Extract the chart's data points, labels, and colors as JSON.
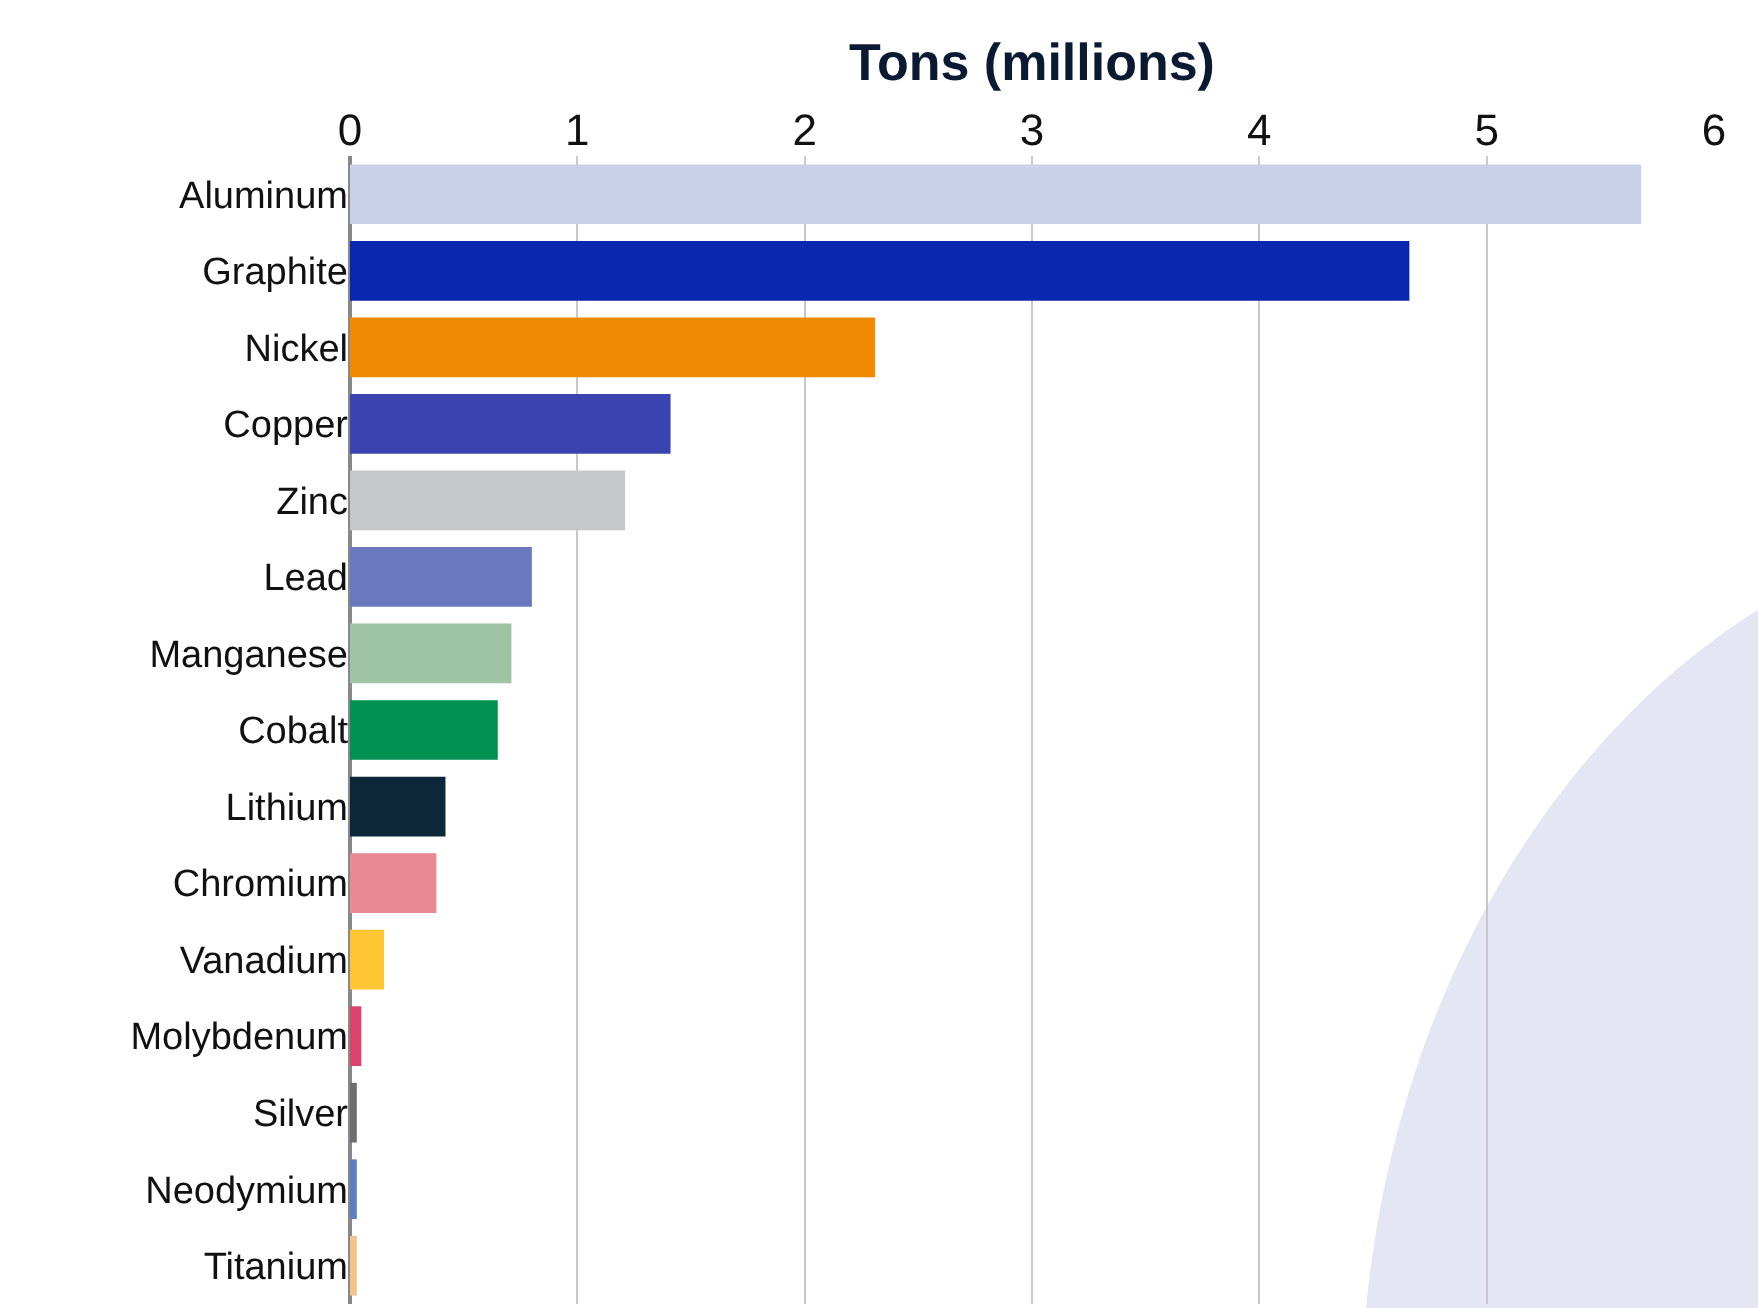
{
  "chart_data": {
    "type": "bar",
    "orientation": "horizontal",
    "xlabel": "Tons (millions)",
    "categories": [
      "Aluminum",
      "Graphite",
      "Nickel",
      "Copper",
      "Zinc",
      "Lead",
      "Manganese",
      "Cobalt",
      "Lithium",
      "Chromium",
      "Vanadium",
      "Molybdenum",
      "Silver",
      "Neodymium",
      "Titanium"
    ],
    "values": [
      5.68,
      4.66,
      2.31,
      1.41,
      1.21,
      0.8,
      0.71,
      0.65,
      0.42,
      0.38,
      0.15,
      0.05,
      0.03,
      0.03,
      0.03
    ],
    "colors": [
      "#c8d0ea",
      "#0a27b0",
      "#f08a00",
      "#3a44b0",
      "#c6c7c9",
      "#6a79bf",
      "#9ec4a3",
      "#009050",
      "#0b2738",
      "#e98993",
      "#ffc533",
      "#d8446a",
      "#6e6e72",
      "#5a7fc0",
      "#f2c48a"
    ],
    "xlim": [
      0,
      6
    ],
    "xticks": [
      0,
      1,
      2,
      3,
      4,
      5,
      6
    ],
    "grid": "x"
  }
}
